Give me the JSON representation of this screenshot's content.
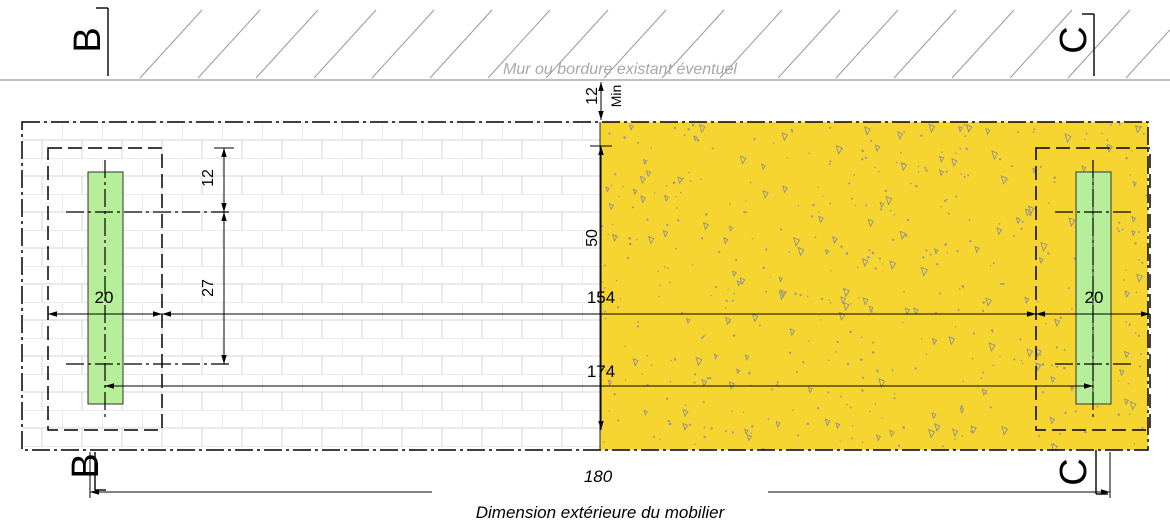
{
  "sections": {
    "left_label": "B",
    "right_label": "C"
  },
  "wall_note": "Mur ou bordure existant éventuel",
  "dimensions": {
    "min_gap_value": "12",
    "min_gap_qualifier": "Min",
    "post_offset": "12",
    "slab_depth": "50",
    "post_spacing": "27",
    "left_pad_width": "20",
    "inner_span": "154",
    "right_pad_width": "20",
    "axis_span": "174",
    "overall_width": "180",
    "overall_caption": "Dimension extérieure du mobilier"
  },
  "colors": {
    "concrete": "#F7D530",
    "post": "#B6EE9A",
    "paving_joint": "#d4d4d4",
    "line": "#000000",
    "wall_hatch": "#9a9a9a"
  }
}
